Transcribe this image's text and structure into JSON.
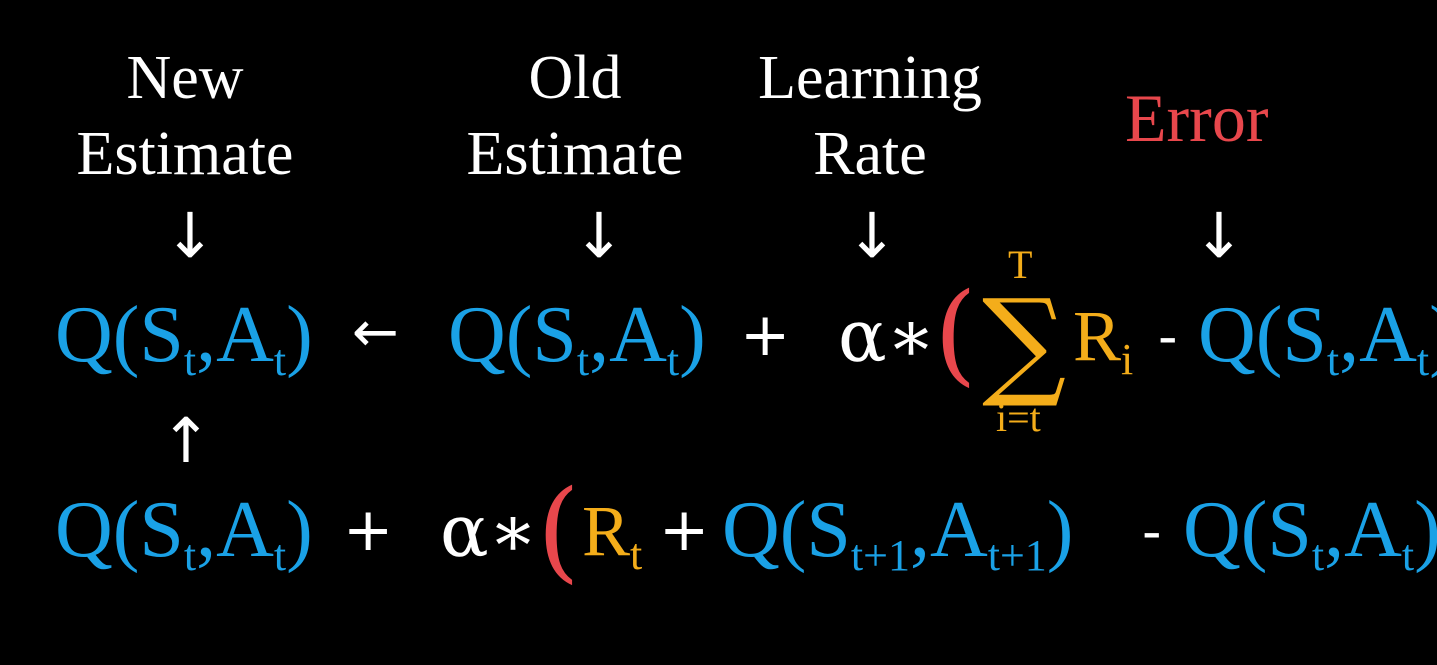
{
  "labels": {
    "new_estimate": [
      "New",
      "Estimate"
    ],
    "old_estimate": [
      "Old",
      "Estimate"
    ],
    "learning_rate": [
      "Learning",
      "Rate"
    ],
    "error": "Error"
  },
  "arrows": {
    "down": "↓",
    "up": "↑",
    "assign": "←"
  },
  "row1": {
    "lhs": "Q(S",
    "lhs_sub": "t",
    "lhs_mid": ",A",
    "lhs_sub2": "t",
    "lhs_end": ")",
    "old": "Q(S",
    "old_sub": "t",
    "old_mid": ",A",
    "old_sub2": "t",
    "old_end": ")",
    "plus": "+",
    "alpha": "α∗",
    "open_paren": "(",
    "sum_symbol": "∑",
    "sum_upper": "T",
    "sum_lower": "i=t",
    "reward": "R",
    "reward_sub": "i",
    "minus": "-",
    "q": "Q(S",
    "q_sub": "t",
    "q_mid": ",A",
    "q_sub2": "t",
    "q_end": ")"
  },
  "row2": {
    "q": "Q(S",
    "q_sub": "t",
    "q_mid": ",A",
    "q_sub2": "t",
    "q_end": ")",
    "plus": "+",
    "alpha": "α∗",
    "open_paren": "(",
    "reward": "R",
    "reward_sub": "t",
    "plus2": "+",
    "qnext": "Q(S",
    "qnext_sub": "t+1",
    "qnext_mid": ",A",
    "qnext_sub2": "t+1",
    "qnext_end": ")",
    "minus": "-",
    "q2": "Q(S",
    "q2_sub": "t",
    "q2_mid": ",A",
    "q2_sub2": "t",
    "q2_end": ")"
  },
  "colors": {
    "q_terms": "#1aa1e6",
    "rewards": "#f4ad1a",
    "error": "#e8474c",
    "text": "#ffffff",
    "background": "#000000"
  }
}
